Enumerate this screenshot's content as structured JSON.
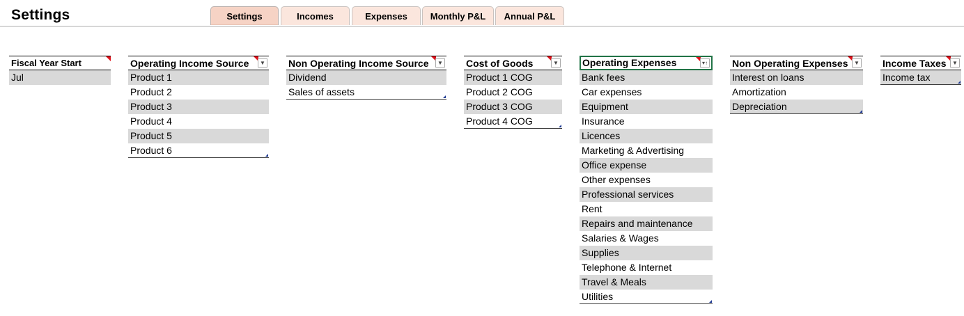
{
  "page_title": "Settings",
  "tabs": [
    {
      "label": "Settings",
      "active": true
    },
    {
      "label": "Incomes",
      "active": false
    },
    {
      "label": "Expenses",
      "active": false
    },
    {
      "label": "Monthly P&L",
      "active": false
    },
    {
      "label": "Annual P&L",
      "active": false
    }
  ],
  "fiscal_year": {
    "header": "Fiscal Year Start",
    "value": "Jul"
  },
  "operating_income": {
    "header": "Operating Income Source",
    "rows": [
      "Product 1",
      "Product 2",
      "Product 3",
      "Product 4",
      "Product 5",
      "Product 6"
    ]
  },
  "non_operating_income": {
    "header": "Non Operating Income Source",
    "rows": [
      "Dividend",
      "Sales of assets"
    ]
  },
  "cost_of_goods": {
    "header": "Cost of Goods",
    "rows": [
      "Product 1 COG",
      "Product 2 COG",
      "Product 3 COG",
      "Product 4 COG"
    ]
  },
  "operating_expenses": {
    "header": "Operating Expenses",
    "rows": [
      "Bank fees",
      "Car expenses",
      "Equipment",
      "Insurance",
      "Licences",
      "Marketing & Advertising",
      "Office expense",
      "Other expenses",
      "Professional services",
      "Rent",
      "Repairs and maintenance",
      "Salaries & Wages",
      "Supplies",
      "Telephone & Internet",
      "Travel & Meals",
      "Utilities"
    ]
  },
  "non_operating_expenses": {
    "header": "Non Operating Expenses",
    "rows": [
      "Interest on loans",
      "Amortization",
      "Depreciation"
    ]
  },
  "income_taxes": {
    "header": "Income Taxes",
    "rows": [
      "Income tax"
    ]
  },
  "icons": {
    "filter": "dropdown-arrow-icon",
    "sorted_filter": "sort-filter-icon",
    "comment": "comment-indicator-icon"
  },
  "colors": {
    "tab_bg": "#fbe6dd",
    "band": "#d9d9d9",
    "comment": "#e0121b",
    "selection": "#217346"
  }
}
